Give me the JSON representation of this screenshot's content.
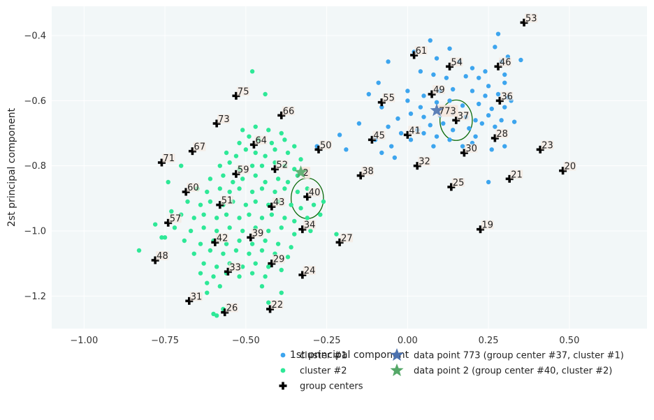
{
  "chart_data": {
    "type": "scatter",
    "xlabel": "1st principal component",
    "ylabel": "2st principal component",
    "xlim": [
      -1.1,
      0.74
    ],
    "ylim": [
      -1.3,
      -0.31
    ],
    "xticks": [
      -1.0,
      -0.75,
      -0.5,
      -0.25,
      0.0,
      0.25,
      0.5
    ],
    "xtick_labels": [
      "−1.00",
      "−0.75",
      "−0.50",
      "−0.25",
      "0.00",
      "0.25",
      "0.50"
    ],
    "yticks": [
      -0.4,
      -0.6,
      -0.8,
      -1.0,
      -1.2
    ],
    "ytick_labels": [
      "−0.4",
      "−0.6",
      "−0.8",
      "−1.0",
      "−1.2"
    ],
    "grid": true,
    "background": "#f2f7f8",
    "colors": {
      "cluster1": "#3da5ee",
      "cluster2": "#2ee897",
      "centers": "#000000",
      "circle": "#0a6a0a",
      "star773": "#4c72b0",
      "star2": "#55a868",
      "label_box": "#f5e6dc"
    },
    "legend": {
      "placement": "below",
      "items": [
        {
          "label": "cluster #1",
          "marker": "dot",
          "color": "#3da5ee"
        },
        {
          "label": "cluster #2",
          "marker": "dot",
          "color": "#2ee897"
        },
        {
          "label": "group centers",
          "marker": "plus",
          "color": "#000000"
        },
        {
          "label": "data point 773 (group center #37, cluster #1)",
          "marker": "star",
          "color": "#4c72b0"
        },
        {
          "label": "data point 2 (group center #40, cluster #2)",
          "marker": "star",
          "color": "#55a868"
        }
      ]
    },
    "highlight_points": [
      {
        "label": "773",
        "x": 0.09,
        "y": -0.63,
        "color": "#4c72b0",
        "circle_center": [
          0.15,
          -0.66
        ],
        "circle_radius": 0.1
      },
      {
        "label": "2",
        "x": -0.33,
        "y": -0.82,
        "color": "#55a868",
        "circle_center": [
          -0.31,
          -0.9
        ],
        "circle_radius": 0.1
      }
    ],
    "group_centers": [
      {
        "label": "53",
        "x": 0.36,
        "y": -0.36
      },
      {
        "label": "61",
        "x": 0.02,
        "y": -0.46
      },
      {
        "label": "54",
        "x": 0.13,
        "y": -0.495
      },
      {
        "label": "46",
        "x": 0.28,
        "y": -0.495
      },
      {
        "label": "75",
        "x": -0.53,
        "y": -0.585
      },
      {
        "label": "49",
        "x": 0.075,
        "y": -0.58
      },
      {
        "label": "55",
        "x": -0.08,
        "y": -0.605
      },
      {
        "label": "36",
        "x": 0.285,
        "y": -0.6
      },
      {
        "label": "66",
        "x": -0.39,
        "y": -0.645
      },
      {
        "label": "37",
        "x": 0.15,
        "y": -0.66
      },
      {
        "label": "73",
        "x": -0.59,
        "y": -0.67
      },
      {
        "label": "41",
        "x": 0.0,
        "y": -0.705
      },
      {
        "label": "28",
        "x": 0.27,
        "y": -0.715
      },
      {
        "label": "45",
        "x": -0.11,
        "y": -0.72
      },
      {
        "label": "64",
        "x": -0.475,
        "y": -0.735
      },
      {
        "label": "23",
        "x": 0.41,
        "y": -0.75
      },
      {
        "label": "67",
        "x": -0.665,
        "y": -0.755
      },
      {
        "label": "50",
        "x": -0.275,
        "y": -0.75
      },
      {
        "label": "30",
        "x": 0.175,
        "y": -0.76
      },
      {
        "label": "71",
        "x": -0.76,
        "y": -0.79
      },
      {
        "label": "32",
        "x": 0.03,
        "y": -0.8
      },
      {
        "label": "52",
        "x": -0.41,
        "y": -0.81
      },
      {
        "label": "20",
        "x": 0.48,
        "y": -0.815
      },
      {
        "label": "59",
        "x": -0.53,
        "y": -0.825
      },
      {
        "label": "38",
        "x": -0.145,
        "y": -0.83
      },
      {
        "label": "21",
        "x": 0.315,
        "y": -0.84
      },
      {
        "label": "25",
        "x": 0.135,
        "y": -0.865
      },
      {
        "label": "60",
        "x": -0.685,
        "y": -0.88
      },
      {
        "label": "40",
        "x": -0.31,
        "y": -0.895
      },
      {
        "label": "51",
        "x": -0.58,
        "y": -0.92
      },
      {
        "label": "43",
        "x": -0.42,
        "y": -0.925
      },
      {
        "label": "57",
        "x": -0.74,
        "y": -0.975
      },
      {
        "label": "19",
        "x": 0.225,
        "y": -0.995
      },
      {
        "label": "34",
        "x": -0.325,
        "y": -0.995
      },
      {
        "label": "39",
        "x": -0.485,
        "y": -1.02
      },
      {
        "label": "27",
        "x": -0.21,
        "y": -1.035
      },
      {
        "label": "42",
        "x": -0.595,
        "y": -1.035
      },
      {
        "label": "48",
        "x": -0.78,
        "y": -1.09
      },
      {
        "label": "29",
        "x": -0.42,
        "y": -1.1
      },
      {
        "label": "33",
        "x": -0.555,
        "y": -1.125
      },
      {
        "label": "24",
        "x": -0.325,
        "y": -1.135
      },
      {
        "label": "31",
        "x": -0.675,
        "y": -1.215
      },
      {
        "label": "22",
        "x": -0.425,
        "y": -1.24
      },
      {
        "label": "26",
        "x": -0.565,
        "y": -1.25
      }
    ],
    "cluster1_points": [
      [
        0.07,
        -0.415
      ],
      [
        0.13,
        -0.44
      ],
      [
        0.28,
        -0.395
      ],
      [
        0.27,
        -0.435
      ],
      [
        0.31,
        -0.465
      ],
      [
        0.29,
        -0.48
      ],
      [
        0.35,
        -0.475
      ],
      [
        -0.06,
        -0.48
      ],
      [
        0.02,
        -0.45
      ],
      [
        0.09,
        -0.47
      ],
      [
        0.16,
        -0.48
      ],
      [
        0.2,
        -0.5
      ],
      [
        0.24,
        -0.51
      ],
      [
        0.3,
        -0.52
      ],
      [
        -0.09,
        -0.545
      ],
      [
        0.04,
        -0.51
      ],
      [
        0.08,
        -0.52
      ],
      [
        0.12,
        -0.53
      ],
      [
        0.18,
        -0.525
      ],
      [
        0.22,
        -0.53
      ],
      [
        0.25,
        -0.555
      ],
      [
        0.3,
        -0.545
      ],
      [
        -0.12,
        -0.58
      ],
      [
        0.0,
        -0.57
      ],
      [
        0.05,
        -0.585
      ],
      [
        0.1,
        -0.57
      ],
      [
        0.14,
        -0.565
      ],
      [
        0.2,
        -0.57
      ],
      [
        0.24,
        -0.585
      ],
      [
        0.28,
        -0.58
      ],
      [
        0.31,
        -0.59
      ],
      [
        -0.08,
        -0.62
      ],
      [
        0.0,
        -0.6
      ],
      [
        0.04,
        -0.62
      ],
      [
        0.09,
        -0.605
      ],
      [
        0.13,
        -0.6
      ],
      [
        0.17,
        -0.615
      ],
      [
        0.22,
        -0.61
      ],
      [
        0.26,
        -0.625
      ],
      [
        0.3,
        -0.62
      ],
      [
        0.32,
        -0.6
      ],
      [
        -0.03,
        -0.655
      ],
      [
        0.01,
        -0.64
      ],
      [
        0.05,
        -0.65
      ],
      [
        0.1,
        -0.645
      ],
      [
        0.14,
        -0.64
      ],
      [
        0.18,
        -0.65
      ],
      [
        0.21,
        -0.66
      ],
      [
        0.25,
        -0.645
      ],
      [
        0.29,
        -0.66
      ],
      [
        0.33,
        -0.665
      ],
      [
        -0.06,
        -0.68
      ],
      [
        -0.02,
        -0.7
      ],
      [
        0.03,
        -0.69
      ],
      [
        0.07,
        -0.675
      ],
      [
        0.11,
        -0.67
      ],
      [
        0.14,
        -0.69
      ],
      [
        0.19,
        -0.685
      ],
      [
        0.23,
        -0.67
      ],
      [
        0.27,
        -0.68
      ],
      [
        -0.15,
        -0.67
      ],
      [
        -0.1,
        -0.72
      ],
      [
        -0.05,
        -0.74
      ],
      [
        0.01,
        -0.72
      ],
      [
        0.05,
        -0.7
      ],
      [
        0.09,
        -0.71
      ],
      [
        0.13,
        -0.72
      ],
      [
        0.17,
        -0.74
      ],
      [
        0.21,
        -0.71
      ],
      [
        0.3,
        -0.74
      ],
      [
        -0.19,
        -0.75
      ],
      [
        -0.21,
        -0.705
      ],
      [
        -0.08,
        -0.76
      ],
      [
        -0.04,
        -0.775
      ],
      [
        0.08,
        -0.74
      ],
      [
        0.2,
        -0.73
      ],
      [
        0.26,
        -0.75
      ],
      [
        0.25,
        -0.85
      ],
      [
        -0.28,
        -0.74
      ]
    ],
    "cluster2_points": [
      [
        -0.48,
        -0.51
      ],
      [
        -0.44,
        -0.58
      ],
      [
        -0.51,
        -0.69
      ],
      [
        -0.47,
        -0.68
      ],
      [
        -0.43,
        -0.69
      ],
      [
        -0.39,
        -0.7
      ],
      [
        -0.52,
        -0.73
      ],
      [
        -0.49,
        -0.71
      ],
      [
        -0.46,
        -0.72
      ],
      [
        -0.42,
        -0.73
      ],
      [
        -0.38,
        -0.72
      ],
      [
        -0.35,
        -0.74
      ],
      [
        -0.56,
        -0.76
      ],
      [
        -0.53,
        -0.77
      ],
      [
        -0.5,
        -0.75
      ],
      [
        -0.47,
        -0.76
      ],
      [
        -0.44,
        -0.77
      ],
      [
        -0.41,
        -0.75
      ],
      [
        -0.37,
        -0.76
      ],
      [
        -0.33,
        -0.78
      ],
      [
        -0.58,
        -0.8
      ],
      [
        -0.55,
        -0.79
      ],
      [
        -0.52,
        -0.81
      ],
      [
        -0.48,
        -0.8
      ],
      [
        -0.45,
        -0.8
      ],
      [
        -0.41,
        -0.79
      ],
      [
        -0.38,
        -0.8
      ],
      [
        -0.35,
        -0.81
      ],
      [
        -0.61,
        -0.84
      ],
      [
        -0.57,
        -0.83
      ],
      [
        -0.54,
        -0.85
      ],
      [
        -0.51,
        -0.84
      ],
      [
        -0.47,
        -0.83
      ],
      [
        -0.44,
        -0.85
      ],
      [
        -0.4,
        -0.84
      ],
      [
        -0.37,
        -0.85
      ],
      [
        -0.34,
        -0.83
      ],
      [
        -0.65,
        -0.87
      ],
      [
        -0.62,
        -0.88
      ],
      [
        -0.58,
        -0.87
      ],
      [
        -0.55,
        -0.88
      ],
      [
        -0.52,
        -0.87
      ],
      [
        -0.48,
        -0.88
      ],
      [
        -0.45,
        -0.87
      ],
      [
        -0.41,
        -0.88
      ],
      [
        -0.38,
        -0.87
      ],
      [
        -0.34,
        -0.88
      ],
      [
        -0.31,
        -0.87
      ],
      [
        -0.68,
        -0.91
      ],
      [
        -0.64,
        -0.92
      ],
      [
        -0.61,
        -0.91
      ],
      [
        -0.57,
        -0.92
      ],
      [
        -0.54,
        -0.91
      ],
      [
        -0.5,
        -0.92
      ],
      [
        -0.47,
        -0.91
      ],
      [
        -0.43,
        -0.92
      ],
      [
        -0.4,
        -0.91
      ],
      [
        -0.36,
        -0.92
      ],
      [
        -0.33,
        -0.93
      ],
      [
        -0.29,
        -0.92
      ],
      [
        -0.26,
        -0.91
      ],
      [
        -0.7,
        -0.95
      ],
      [
        -0.66,
        -0.96
      ],
      [
        -0.63,
        -0.95
      ],
      [
        -0.59,
        -0.96
      ],
      [
        -0.56,
        -0.95
      ],
      [
        -0.52,
        -0.96
      ],
      [
        -0.49,
        -0.95
      ],
      [
        -0.45,
        -0.96
      ],
      [
        -0.42,
        -0.95
      ],
      [
        -0.38,
        -0.96
      ],
      [
        -0.35,
        -0.97
      ],
      [
        -0.31,
        -0.96
      ],
      [
        -0.27,
        -0.95
      ],
      [
        -0.78,
        -0.98
      ],
      [
        -0.72,
        -0.99
      ],
      [
        -0.67,
        -1.0
      ],
      [
        -0.63,
        -0.99
      ],
      [
        -0.59,
        -1.0
      ],
      [
        -0.55,
        -0.99
      ],
      [
        -0.51,
        -1.0
      ],
      [
        -0.47,
        -0.99
      ],
      [
        -0.43,
        -1.0
      ],
      [
        -0.39,
        -0.99
      ],
      [
        -0.35,
        -1.01
      ],
      [
        -0.3,
        -1.0
      ],
      [
        -0.22,
        -1.01
      ],
      [
        -0.76,
        -1.02
      ],
      [
        -0.69,
        -1.03
      ],
      [
        -0.64,
        -1.04
      ],
      [
        -0.6,
        -1.03
      ],
      [
        -0.56,
        -1.04
      ],
      [
        -0.52,
        -1.03
      ],
      [
        -0.48,
        -1.04
      ],
      [
        -0.44,
        -1.03
      ],
      [
        -0.4,
        -1.04
      ],
      [
        -0.36,
        -1.05
      ],
      [
        -0.83,
        -1.06
      ],
      [
        -0.66,
        -1.07
      ],
      [
        -0.61,
        -1.06
      ],
      [
        -0.57,
        -1.07
      ],
      [
        -0.53,
        -1.06
      ],
      [
        -0.49,
        -1.07
      ],
      [
        -0.45,
        -1.06
      ],
      [
        -0.41,
        -1.07
      ],
      [
        -0.37,
        -1.08
      ],
      [
        -0.63,
        -1.1
      ],
      [
        -0.59,
        -1.11
      ],
      [
        -0.55,
        -1.1
      ],
      [
        -0.51,
        -1.11
      ],
      [
        -0.47,
        -1.1
      ],
      [
        -0.43,
        -1.11
      ],
      [
        -0.39,
        -1.12
      ],
      [
        -0.64,
        -1.13
      ],
      [
        -0.6,
        -1.14
      ],
      [
        -0.56,
        -1.13
      ],
      [
        -0.52,
        -1.14
      ],
      [
        -0.48,
        -1.13
      ],
      [
        -0.44,
        -1.14
      ],
      [
        -0.62,
        -1.16
      ],
      [
        -0.58,
        -1.17
      ],
      [
        -0.45,
        -1.17
      ],
      [
        -0.39,
        -1.19
      ],
      [
        -0.62,
        -1.19
      ],
      [
        -0.6,
        -1.255
      ],
      [
        -0.59,
        -1.26
      ],
      [
        -0.57,
        -1.24
      ],
      [
        -0.43,
        -1.22
      ],
      [
        -0.7,
        -0.8
      ],
      [
        -0.74,
        -0.85
      ],
      [
        -0.73,
        -0.94
      ],
      [
        -0.75,
        -1.02
      ]
    ]
  }
}
